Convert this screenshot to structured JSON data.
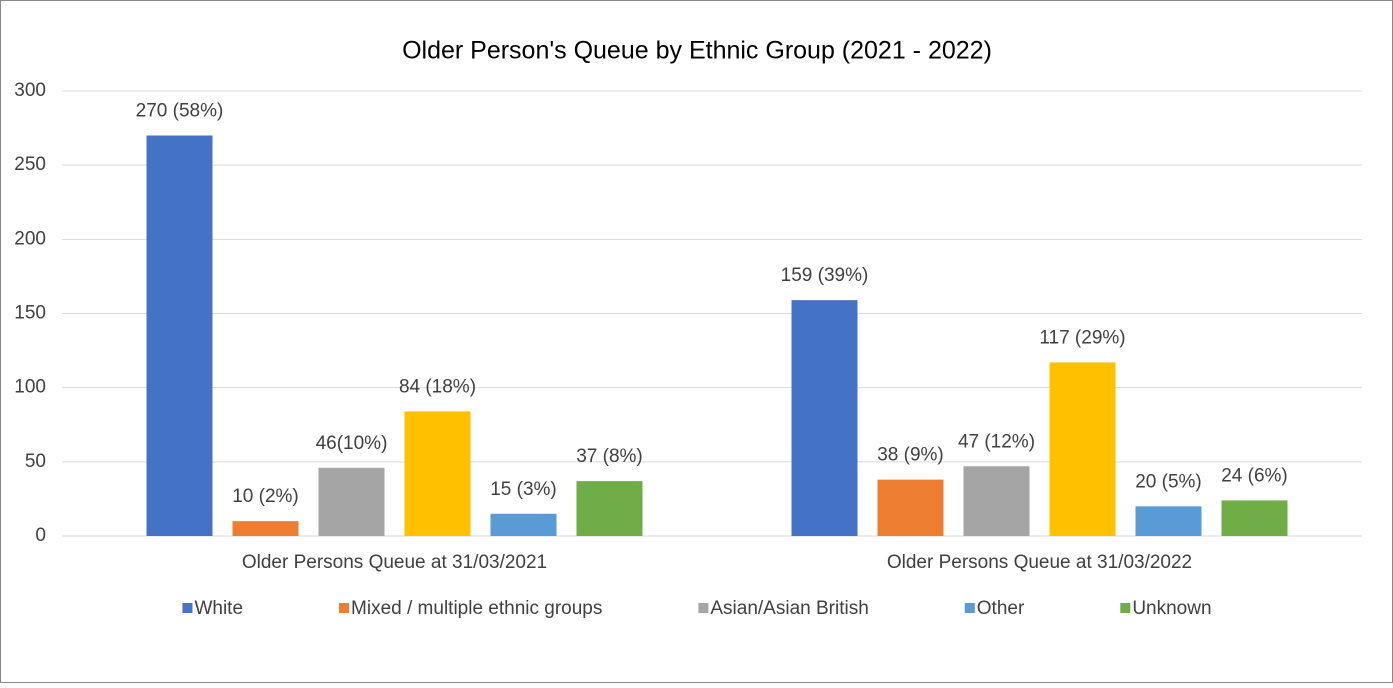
{
  "chart_data": {
    "type": "bar",
    "title": "Older Person's Queue by Ethnic Group (2021 - 2022)",
    "categories": [
      "Older Persons Queue at 31/03/2021",
      "Older Persons Queue at 31/03/2022"
    ],
    "series": [
      {
        "name": "White",
        "color": "#4472c4",
        "values": [
          270,
          159
        ],
        "value_labels": [
          "270 (58%)",
          "159 (39%)"
        ]
      },
      {
        "name": "Mixed / multiple ethnic groups",
        "color": "#ed7d31",
        "values": [
          10,
          38
        ],
        "value_labels": [
          "10 (2%)",
          "38 (9%)"
        ]
      },
      {
        "name": "Asian/Asian British",
        "color": "#a5a5a5",
        "values": [
          46,
          47
        ],
        "value_labels": [
          "46(10%)",
          "47 (12%)"
        ]
      },
      {
        "color": "#ffc000",
        "values": [
          84,
          117
        ],
        "value_labels": [
          "84 (18%)",
          "117 (29%)"
        ]
      },
      {
        "name": "Other",
        "color": "#5b9bd5",
        "values": [
          15,
          20
        ],
        "value_labels": [
          "15 (3%)",
          "20 (5%)"
        ]
      },
      {
        "name": "Unknown",
        "color": "#70ad47",
        "values": [
          37,
          24
        ],
        "value_labels": [
          "37 (8%)",
          "24 (6%)"
        ]
      }
    ],
    "ylim": [
      0,
      300
    ],
    "yticks": [
      0,
      50,
      100,
      150,
      200,
      250,
      300
    ],
    "grid": true,
    "legend": "bottom"
  }
}
